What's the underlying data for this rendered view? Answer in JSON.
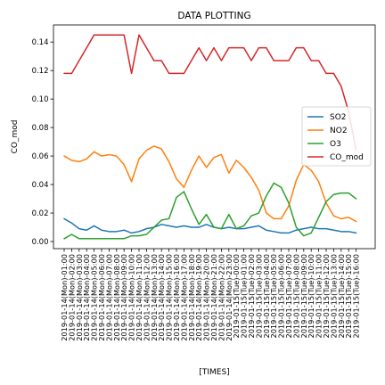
{
  "chart_data": {
    "type": "line",
    "title": "DATA PLOTTING",
    "xlabel": "[TIMES]",
    "ylabel": "CO_mod",
    "ylim": [
      -0.005,
      0.152
    ],
    "yticks": [
      0.0,
      0.02,
      0.04,
      0.06,
      0.08,
      0.1,
      0.12,
      0.14
    ],
    "ytick_labels": [
      "0.00",
      "0.02",
      "0.04",
      "0.06",
      "0.08",
      "0.10",
      "0.12",
      "0.14"
    ],
    "grid": false,
    "legend_position": "right",
    "categories": [
      "2019-01-14(Mon)-01:00",
      "2019-01-14(Mon)-02:00",
      "2019-01-14(Mon)-03:00",
      "2019-01-14(Mon)-04:00",
      "2019-01-14(Mon)-05:00",
      "2019-01-14(Mon)-06:00",
      "2019-01-14(Mon)-07:00",
      "2019-01-14(Mon)-08:00",
      "2019-01-14(Mon)-09:00",
      "2019-01-14(Mon)-10:00",
      "2019-01-14(Mon)-11:00",
      "2019-01-14(Mon)-12:00",
      "2019-01-14(Mon)-13:00",
      "2019-01-14(Mon)-14:00",
      "2019-01-14(Mon)-15:00",
      "2019-01-14(Mon)-16:00",
      "2019-01-14(Mon)-17:00",
      "2019-01-14(Mon)-18:00",
      "2019-01-14(Mon)-19:00",
      "2019-01-14(Mon)-20:00",
      "2019-01-14(Mon)-21:00",
      "2019-01-14(Mon)-22:00",
      "2019-01-14(Mon)-23:00",
      "2019-01-15(Tue)-00:00",
      "2019-01-15(Tue)-01:00",
      "2019-01-15(Tue)-02:00",
      "2019-01-15(Tue)-03:00",
      "2019-01-15(Tue)-04:00",
      "2019-01-15(Tue)-05:00",
      "2019-01-15(Tue)-06:00",
      "2019-01-15(Tue)-07:00",
      "2019-01-15(Tue)-08:00",
      "2019-01-15(Tue)-09:00",
      "2019-01-15(Tue)-10:00",
      "2019-01-15(Tue)-11:00",
      "2019-01-15(Tue)-12:00",
      "2019-01-15(Tue)-13:00",
      "2019-01-15(Tue)-14:00",
      "2019-01-15(Tue)-15:00",
      "2019-01-15(Tue)-16:00"
    ],
    "series": [
      {
        "name": "SO2",
        "color": "#1f77b4",
        "values": [
          0.016,
          0.013,
          0.009,
          0.008,
          0.011,
          0.008,
          0.007,
          0.007,
          0.008,
          0.006,
          0.007,
          0.009,
          0.01,
          0.012,
          0.011,
          0.01,
          0.011,
          0.01,
          0.01,
          0.012,
          0.01,
          0.009,
          0.01,
          0.009,
          0.009,
          0.01,
          0.011,
          0.008,
          0.007,
          0.006,
          0.006,
          0.008,
          0.009,
          0.01,
          0.009,
          0.009,
          0.008,
          0.007,
          0.007,
          0.006
        ]
      },
      {
        "name": "NO2",
        "color": "#ff7f0e",
        "values": [
          0.06,
          0.057,
          0.056,
          0.058,
          0.063,
          0.06,
          0.061,
          0.06,
          0.054,
          0.042,
          0.058,
          0.064,
          0.067,
          0.065,
          0.056,
          0.044,
          0.038,
          0.05,
          0.06,
          0.052,
          0.059,
          0.061,
          0.048,
          0.057,
          0.052,
          0.045,
          0.036,
          0.02,
          0.016,
          0.016,
          0.025,
          0.043,
          0.054,
          0.05,
          0.042,
          0.027,
          0.018,
          0.016,
          0.017,
          0.014
        ]
      },
      {
        "name": "O3",
        "color": "#2ca02c",
        "values": [
          0.002,
          0.005,
          0.002,
          0.002,
          0.002,
          0.002,
          0.002,
          0.002,
          0.002,
          0.004,
          0.004,
          0.005,
          0.01,
          0.015,
          0.016,
          0.031,
          0.035,
          0.023,
          0.012,
          0.019,
          0.01,
          0.009,
          0.019,
          0.009,
          0.011,
          0.018,
          0.02,
          0.032,
          0.041,
          0.038,
          0.027,
          0.01,
          0.004,
          0.006,
          0.017,
          0.028,
          0.033,
          0.034,
          0.034,
          0.03
        ]
      },
      {
        "name": "CO_mod",
        "color": "#d62728",
        "values": [
          0.118,
          0.118,
          0.127,
          0.136,
          0.145,
          0.145,
          0.145,
          0.145,
          0.145,
          0.118,
          0.145,
          0.136,
          0.127,
          0.127,
          0.118,
          0.118,
          0.118,
          0.127,
          0.136,
          0.127,
          0.136,
          0.127,
          0.136,
          0.136,
          0.136,
          0.127,
          0.136,
          0.136,
          0.127,
          0.127,
          0.127,
          0.136,
          0.136,
          0.127,
          0.127,
          0.118,
          0.118,
          0.109,
          0.091,
          0.064
        ]
      }
    ]
  }
}
